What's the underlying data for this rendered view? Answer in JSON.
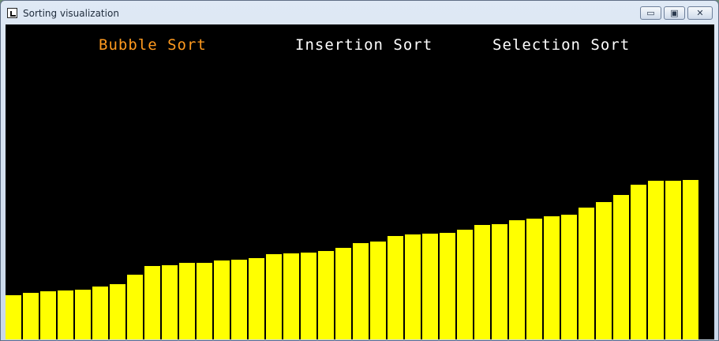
{
  "window": {
    "title": "Sorting visualization",
    "buttons": {
      "minimize": "▭",
      "maximize": "▣",
      "close": "✕"
    }
  },
  "labels": {
    "bubble": "Bubble Sort",
    "insertion": "Insertion Sort",
    "selection": "Selection Sort"
  },
  "colors": {
    "active_label": "#ff9a1f",
    "inactive_label": "#ffffff",
    "bar": "#ffff00",
    "background": "#000000"
  },
  "active_algorithm": "bubble",
  "chart_data": {
    "type": "bar",
    "max_value": 399,
    "values": [
      56,
      59,
      61,
      62,
      63,
      67,
      70,
      82,
      93,
      94,
      97,
      97,
      100,
      101,
      103,
      108,
      109,
      110,
      112,
      116,
      122,
      124,
      131,
      133,
      134,
      135,
      139,
      145,
      146,
      151,
      153,
      156,
      158,
      167,
      174,
      183,
      196,
      201,
      201,
      202
    ]
  }
}
